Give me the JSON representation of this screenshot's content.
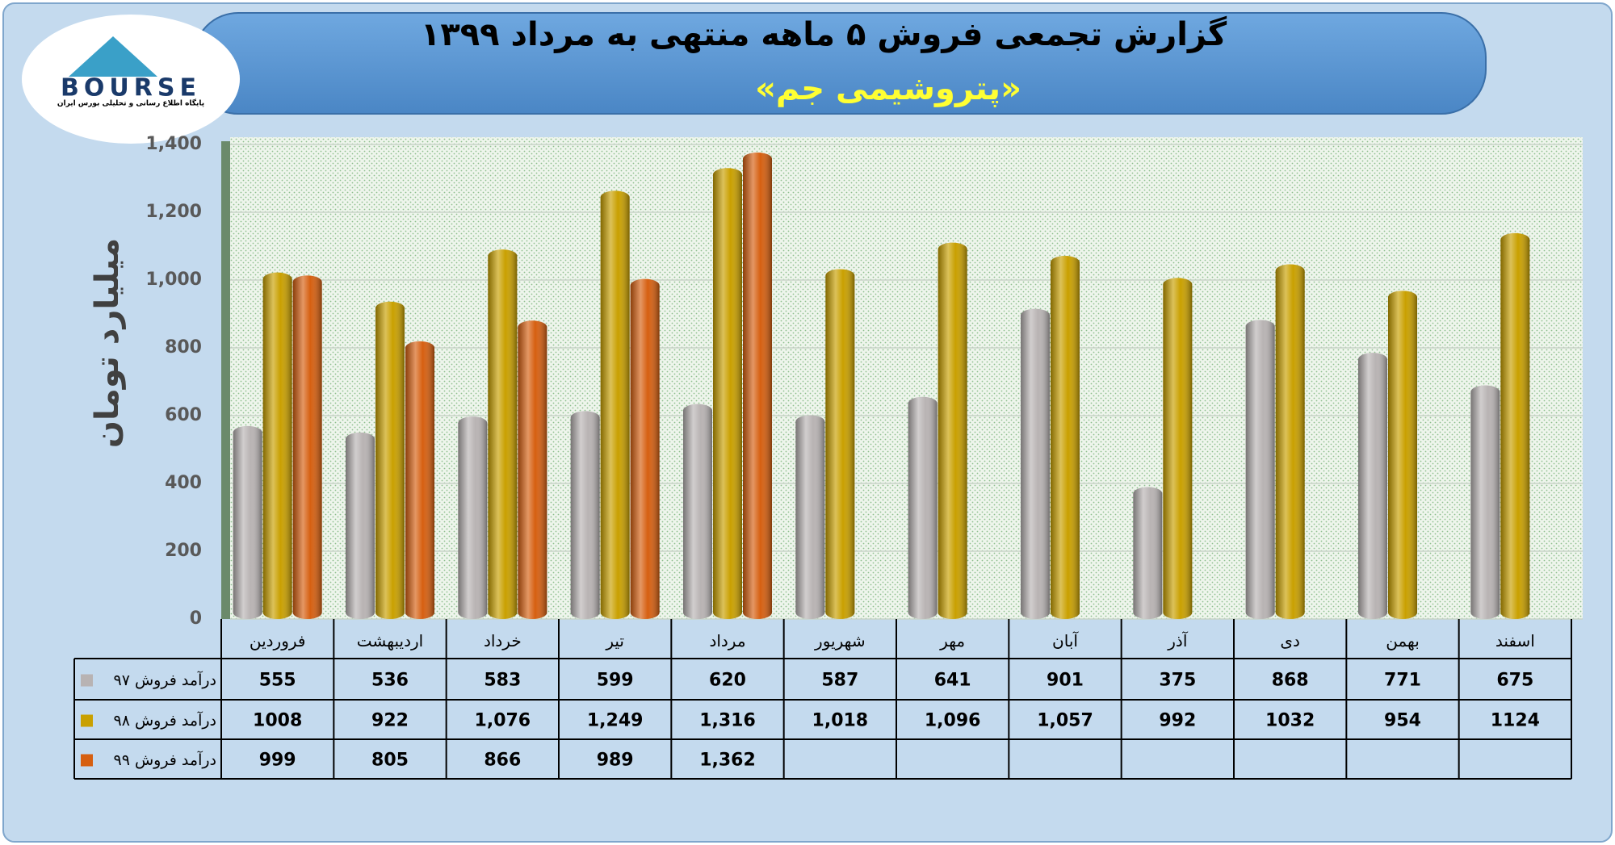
{
  "logo": {
    "text": "BOURSE",
    "tagline": "پایگاه اطلاع رسانی و تحلیلی بورس ایران"
  },
  "chart_data": {
    "type": "bar",
    "title": "گزارش تجمعی فروش ۵ ماهه منتهی به مرداد ۱۳۹۹",
    "subtitle": "«پتروشیمی جم»",
    "y_label": "میلیارد تومان",
    "categories": [
      "فروردین",
      "اردیبهشت",
      "خرداد",
      "تیر",
      "مرداد",
      "شهریور",
      "مهر",
      "آبان",
      "آذر",
      "دی",
      "بهمن",
      "اسفند"
    ],
    "series": [
      {
        "name": "درآمد فروش ۹۷",
        "color": "#b8b3b3",
        "values": [
          555,
          536,
          583,
          599,
          620,
          587,
          641,
          901,
          375,
          868,
          771,
          675
        ]
      },
      {
        "name": "درآمد فروش ۹۸",
        "color": "#c9a000",
        "values": [
          1008,
          922,
          1076,
          1249,
          1316,
          1018,
          1096,
          1057,
          992,
          1032,
          954,
          1124
        ],
        "value_labels": [
          "1008",
          "922",
          "1,076",
          "1,249",
          "1,316",
          "1,018",
          "1,096",
          "1,057",
          "992",
          "1032",
          "954",
          "1124"
        ]
      },
      {
        "name": "درآمد فروش ۹۹",
        "color": "#d65f10",
        "values": [
          999,
          805,
          866,
          989,
          1362,
          null,
          null,
          null,
          null,
          null,
          null,
          null
        ],
        "value_labels": [
          "999",
          "805",
          "866",
          "989",
          "1,362",
          null,
          null,
          null,
          null,
          null,
          null,
          null
        ]
      }
    ],
    "ylim": [
      0,
      1400
    ],
    "yticks": [
      0,
      200,
      400,
      600,
      800,
      {
        "value": 1000,
        "label": "1,000"
      },
      {
        "value": 1200,
        "label": "1,200"
      },
      {
        "value": 1400,
        "label": "1,400"
      }
    ],
    "grid": true
  }
}
